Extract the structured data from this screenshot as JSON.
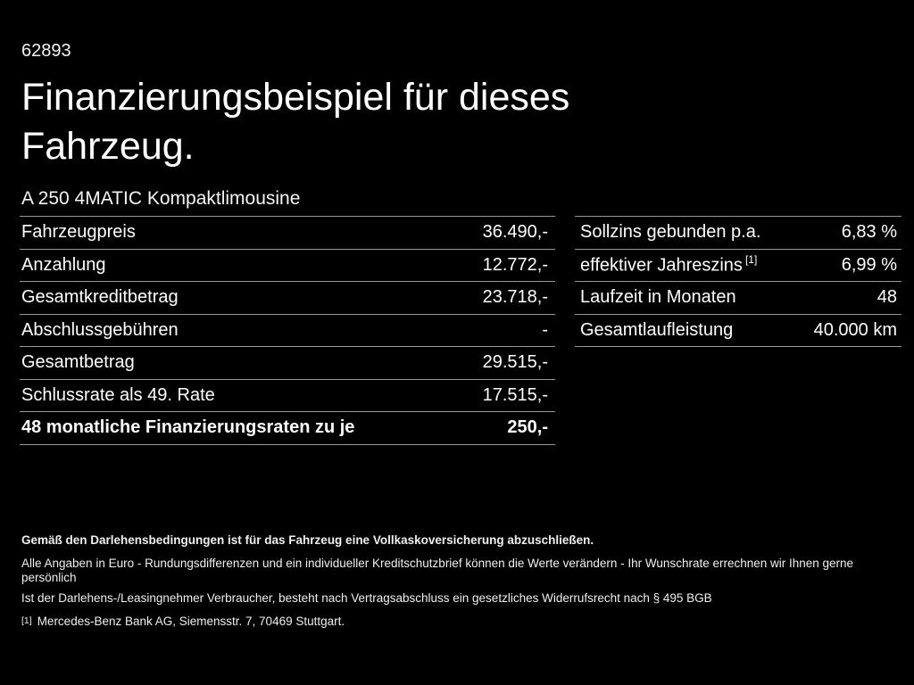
{
  "page": {
    "ref_number": "62893",
    "title_line1": "Finanzierungsbeispiel für dieses",
    "title_line2": "Fahrzeug.",
    "model_name": "A 250 4MATIC Kompaktlimousine"
  },
  "colors": {
    "background": "#000000",
    "text": "#ffffff",
    "divider": "#969696"
  },
  "finance_table": {
    "rows": [
      {
        "label": "Fahrzeugpreis",
        "value": "36.490,-"
      },
      {
        "label": "Anzahlung",
        "value": "12.772,-"
      },
      {
        "label": "Gesamtkreditbetrag",
        "value": "23.718,-"
      },
      {
        "label": "Abschlussgebühren",
        "value": "-"
      },
      {
        "label": "Gesamtbetrag",
        "value": "29.515,-"
      },
      {
        "label": "Schlussrate als 49. Rate",
        "value": "17.515,-"
      },
      {
        "label": "48 monatliche Finanzierungsraten zu je",
        "value": "250,-"
      }
    ]
  },
  "conditions_table": {
    "rows": [
      {
        "label": "Sollzins gebunden p.a.",
        "footnote": "",
        "value": "6,83 %"
      },
      {
        "label": "effektiver Jahreszins",
        "footnote": "[1]",
        "value": "6,99 %"
      },
      {
        "label": "Laufzeit in Monaten",
        "footnote": "",
        "value": "48"
      },
      {
        "label": "Gesamtlaufleistung",
        "footnote": "",
        "value": "40.000 km"
      }
    ]
  },
  "footer": {
    "line1": "Gemäß den Darlehensbedingungen ist für das Fahrzeug eine Vollkaskoversicherung abzuschließen.",
    "line2": "Alle Angaben in Euro - Rundungsdifferenzen und ein individueller Kreditschutzbrief können die Werte verändern - Ihr Wunschrate errechnen wir Ihnen gerne persönlich",
    "line3": "Ist der Darlehens-/Leasingnehmer Verbraucher, besteht nach Vertragsabschluss ein gesetzliches Widerrufsrecht nach § 495 BGB",
    "footnote_marker": "[1]",
    "footnote_text": "Mercedes-Benz Bank AG, Siemensstr. 7, 70469 Stuttgart."
  }
}
